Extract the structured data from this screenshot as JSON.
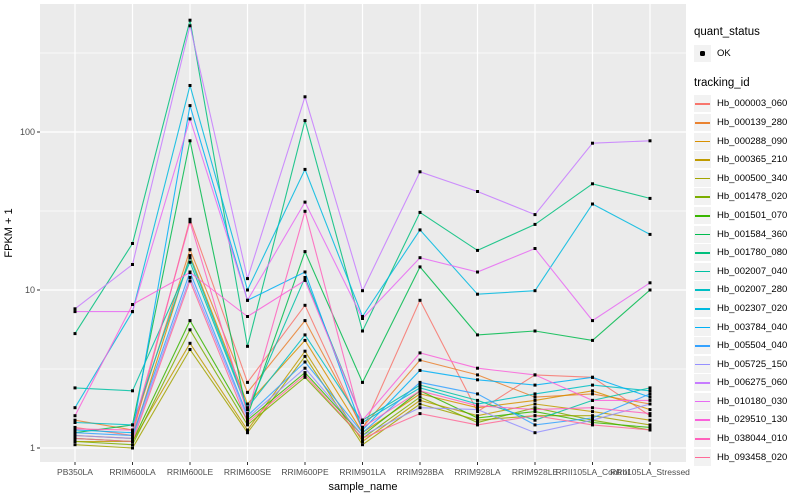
{
  "chart_data": {
    "type": "line",
    "title": "",
    "xlabel": "sample_name",
    "ylabel": "FPKM + 1",
    "y_scale": "log10",
    "y_ticks": [
      1,
      10,
      100
    ],
    "y_tick_labels": [
      "1",
      "10",
      "100"
    ],
    "y_minor_breaks": [
      3.162,
      31.62,
      316.2
    ],
    "ylim": [
      0.95,
      660
    ],
    "grid": "on",
    "legend_position": "right",
    "point_marker": {
      "shape": "square",
      "color": "#000000",
      "size": 3
    },
    "categories": [
      "PB350LA",
      "RRIM600LA",
      "RRIM600LE",
      "RRIM600SE",
      "RRIM600PE",
      "RRIM901LA",
      "RRIM928BA",
      "RRIM928LA",
      "RRIM928LE",
      "RRII105LA_Control",
      "RRII105LA_Stressed"
    ],
    "series": [
      {
        "name": "Hb_000003_060",
        "color": "#F8766D",
        "values": [
          1.35,
          1.2,
          28,
          2.6,
          8.0,
          1.3,
          8.6,
          1.7,
          2.9,
          2.8,
          1.6
        ]
      },
      {
        "name": "Hb_000139_280",
        "color": "#EA8331",
        "values": [
          1.5,
          1.3,
          18,
          2.25,
          6.4,
          1.35,
          3.6,
          2.9,
          2.1,
          2.2,
          1.9
        ]
      },
      {
        "name": "Hb_000288_090",
        "color": "#D89000",
        "values": [
          1.2,
          1.15,
          16.5,
          1.9,
          4.8,
          1.25,
          2.2,
          1.8,
          2.0,
          2.3,
          1.75
        ]
      },
      {
        "name": "Hb_000365_210",
        "color": "#C09B00",
        "values": [
          1.1,
          1.1,
          4.6,
          1.3,
          4.1,
          1.1,
          2.0,
          1.6,
          1.9,
          1.7,
          1.5
        ]
      },
      {
        "name": "Hb_000500_340",
        "color": "#A3A500",
        "values": [
          1.05,
          1.0,
          4.2,
          1.25,
          3.8,
          1.05,
          1.9,
          1.5,
          1.6,
          1.6,
          1.4
        ]
      },
      {
        "name": "Hb_001478_020",
        "color": "#7CAE00",
        "values": [
          1.1,
          1.05,
          5.6,
          1.4,
          2.8,
          1.15,
          2.1,
          1.45,
          1.8,
          1.5,
          1.3
        ]
      },
      {
        "name": "Hb_001501_070",
        "color": "#39B600",
        "values": [
          1.15,
          1.1,
          6.4,
          1.5,
          3.0,
          1.2,
          2.3,
          1.55,
          1.7,
          1.45,
          1.35
        ]
      },
      {
        "name": "Hb_001584_360",
        "color": "#00BB4E",
        "values": [
          1.25,
          1.4,
          88,
          1.6,
          17.5,
          2.6,
          14,
          5.2,
          5.5,
          4.8,
          10
        ]
      },
      {
        "name": "Hb_001780_080",
        "color": "#00BF7D",
        "values": [
          5.3,
          19.7,
          510,
          4.4,
          118,
          5.5,
          31,
          17.8,
          26,
          47,
          38
        ]
      },
      {
        "name": "Hb_002007_040",
        "color": "#00C1A3",
        "values": [
          2.4,
          2.3,
          15,
          1.75,
          12,
          1.5,
          2.5,
          2.0,
          1.5,
          2.0,
          2.4
        ]
      },
      {
        "name": "Hb_002007_280",
        "color": "#00BFC4",
        "values": [
          1.45,
          1.4,
          16,
          1.8,
          5.2,
          1.45,
          2.4,
          1.9,
          2.2,
          2.5,
          2.3
        ]
      },
      {
        "name": "Hb_002307_020",
        "color": "#00BAE0",
        "values": [
          1.8,
          7.3,
          197,
          10,
          58,
          6.8,
          24,
          9.4,
          9.9,
          35,
          22.5
        ]
      },
      {
        "name": "Hb_003784_040",
        "color": "#00B0F6",
        "values": [
          1.3,
          1.25,
          147,
          8.6,
          13,
          1.3,
          3.1,
          2.7,
          2.5,
          2.8,
          2.1
        ]
      },
      {
        "name": "Hb_005504_040",
        "color": "#35A2FF",
        "values": [
          1.25,
          1.2,
          13,
          1.6,
          3.5,
          1.25,
          2.6,
          2.2,
          1.4,
          1.55,
          2.2
        ]
      },
      {
        "name": "Hb_005725_150",
        "color": "#9590FF",
        "values": [
          1.2,
          1.15,
          12,
          1.55,
          3.2,
          1.2,
          1.8,
          1.75,
          1.25,
          1.5,
          1.9
        ]
      },
      {
        "name": "Hb_006275_060",
        "color": "#C77CFF",
        "values": [
          7.6,
          14.5,
          470,
          11.8,
          167,
          9.9,
          56,
          42,
          30,
          85,
          88
        ]
      },
      {
        "name": "Hb_010180_030",
        "color": "#E76BF3",
        "values": [
          7.3,
          7.3,
          121,
          8.6,
          36,
          6.6,
          16,
          13,
          18.3,
          6.4,
          11.1
        ]
      },
      {
        "name": "Hb_029510_130",
        "color": "#FA62DB",
        "values": [
          1.6,
          8.1,
          12.9,
          6.8,
          11.5,
          1.5,
          4.0,
          3.2,
          2.9,
          2.0,
          2.0
        ]
      },
      {
        "name": "Hb_038044_010",
        "color": "#FF62BC",
        "values": [
          1.32,
          1.3,
          27,
          1.65,
          31.5,
          1.35,
          2.3,
          1.85,
          1.75,
          1.8,
          1.65
        ]
      },
      {
        "name": "Hb_093458_020",
        "color": "#FF6A98",
        "values": [
          1.15,
          1.1,
          11.4,
          1.45,
          2.9,
          1.15,
          1.65,
          1.4,
          1.6,
          1.4,
          1.3
        ]
      }
    ]
  },
  "legend": {
    "quant_status": {
      "title": "quant_status",
      "items": [
        {
          "label": "OK",
          "glyph": "black-point"
        }
      ]
    },
    "tracking_id": {
      "title": "tracking_id"
    }
  },
  "theme": {
    "panel_background": "#EBEBEB",
    "grid_color": "#FFFFFF",
    "key_background": "#F2F2F2",
    "axis_text_color": "#4D4D4D",
    "tick_color": "#333333"
  }
}
